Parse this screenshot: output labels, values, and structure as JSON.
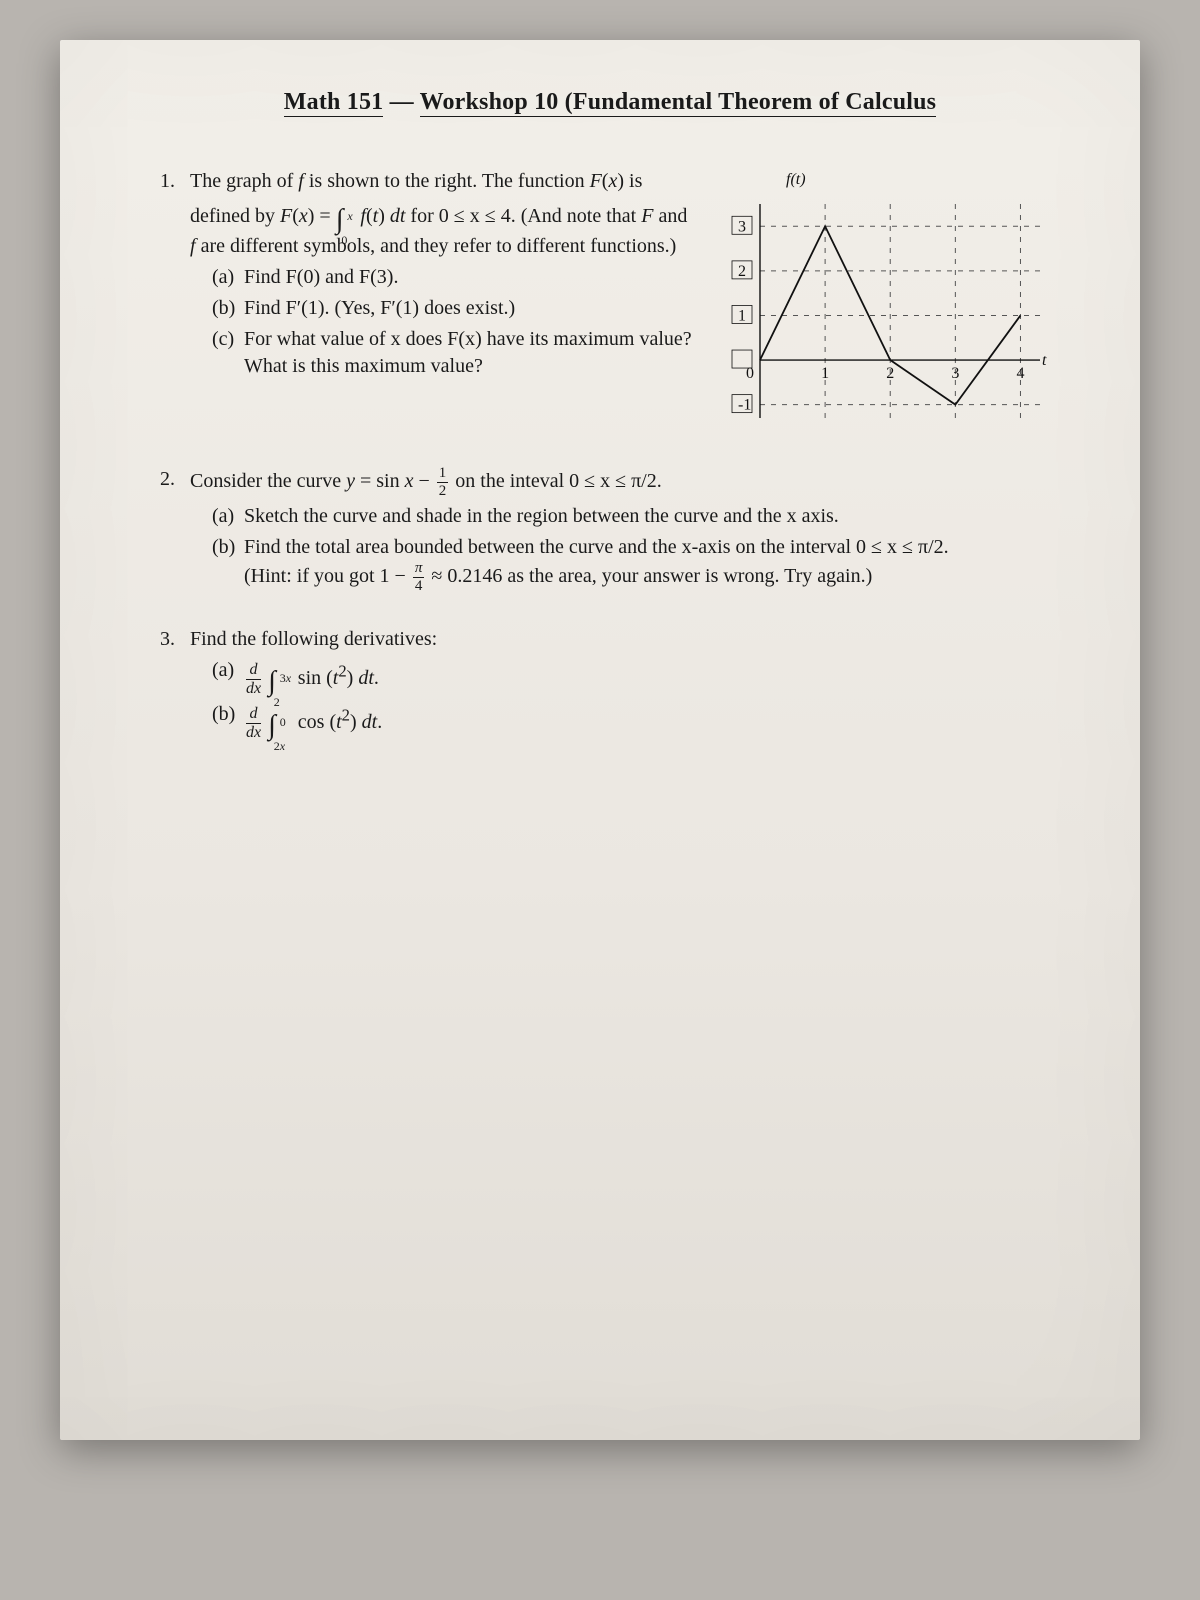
{
  "header": {
    "course": "Math 151",
    "sep": "—",
    "title": "Workshop 10 (Fundamental Theorem of Calculus"
  },
  "q1": {
    "intro_a": "The graph of ",
    "intro_b": " is shown to the right. The function ",
    "intro_c": " is defined by ",
    "intro_d": " for 0 ≤ x ≤ 4. (And note that ",
    "intro_e": " and ",
    "intro_f": " are different symbols, and they refer to different functions.)",
    "a": "Find F(0) and F(3).",
    "b": "Find F′(1). (Yes, F′(1) does exist.)",
    "c": "For what value of x does F(x) have its maximum value? What is this maximum value?"
  },
  "q2": {
    "intro_a": "Consider the curve ",
    "intro_b": " on the inteval 0 ≤ x ≤ π/2.",
    "a": "Sketch the curve and shade in the region between the curve and the x axis.",
    "b_a": "Find the total area bounded between the curve and the x-axis on the interval 0 ≤ x ≤ π/2.",
    "b_b": "(Hint: if you got 1 − ",
    "b_c": " ≈ 0.2146 as the area, your answer is wrong. Try again.)"
  },
  "q3": {
    "intro": "Find the following derivatives:"
  },
  "chart": {
    "type": "line",
    "xlim": [
      0,
      4.3
    ],
    "ylim": [
      -1.3,
      3.5
    ],
    "xticks": [
      0,
      1,
      2,
      3,
      4
    ],
    "yticks": [
      -1,
      0,
      1,
      2,
      3
    ],
    "y_axis_label": "f(t)",
    "x_axis_label": "t",
    "grid_dash": "5 6",
    "grid_color": "#555555",
    "axis_color": "#111111",
    "line_color": "#111111",
    "line_width": 1.8,
    "background": "transparent",
    "points": [
      [
        0,
        0
      ],
      [
        1,
        3
      ],
      [
        2,
        0
      ],
      [
        3,
        -1
      ],
      [
        3.5,
        0
      ],
      [
        4,
        1
      ]
    ]
  }
}
